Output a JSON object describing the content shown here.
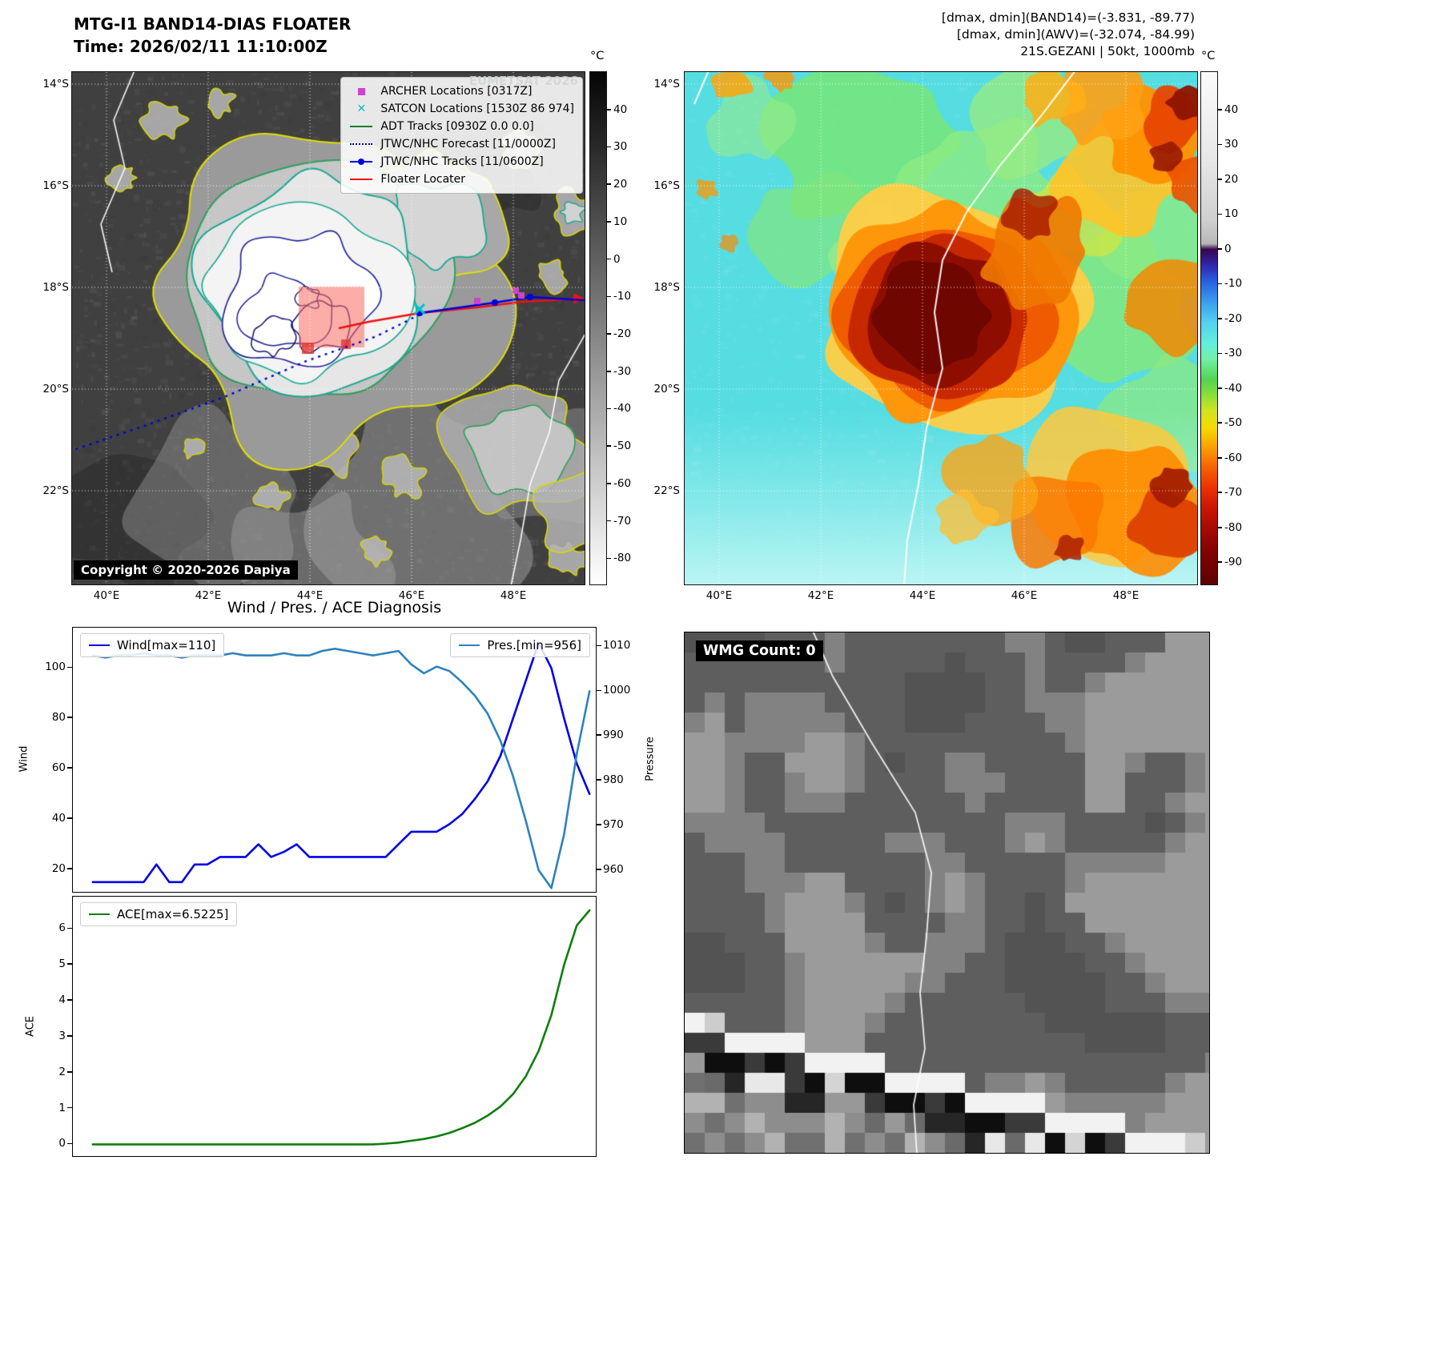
{
  "panel_band14": {
    "title_line1": "MTG-I1 BAND14-DIAS FLOATER",
    "title_line2": "Time: 2026/02/11 11:10:00Z",
    "watermark": "EUMETSAT 2026",
    "copyright": "Copyright © 2020-2026 Dapiya",
    "colorbar": {
      "unit": "°C",
      "ticks": [
        40,
        30,
        20,
        10,
        0,
        -10,
        -20,
        -30,
        -40,
        -50,
        -60,
        -70,
        -80
      ]
    },
    "lat_ticks": [
      "14°S",
      "16°S",
      "18°S",
      "20°S",
      "22°S"
    ],
    "lon_ticks": [
      "40°E",
      "42°E",
      "44°E",
      "46°E",
      "48°E"
    ],
    "legend": [
      {
        "label": "ARCHER Locations [0317Z]",
        "marker": "square",
        "color": "#cc44cc"
      },
      {
        "label": "SATCON Locations [1530Z 86 974]",
        "marker": "x",
        "color": "#00bcd0"
      },
      {
        "label": "ADT Tracks [0930Z 0.0 0.0]",
        "marker": "line",
        "color": "#0d7d2c"
      },
      {
        "label": "JTWC/NHC Forecast [11/0000Z]",
        "marker": "dotted-line",
        "color": "#0000dd"
      },
      {
        "label": "JTWC/NHC Tracks [11/0600Z]",
        "marker": "line-marker",
        "color": "#0000dd"
      },
      {
        "label": "Floater Locater",
        "marker": "line",
        "color": "#ee1111"
      }
    ]
  },
  "panel_awv": {
    "header_lines": [
      "[dmax, dmin](BAND14)=(-3.831, -89.77)",
      "[dmax, dmin](AWV)=(-32.074, -84.99)",
      "21S.GEZANI | 50kt, 1000mb"
    ],
    "colorbar": {
      "unit": "°C",
      "ticks": [
        40,
        30,
        20,
        10,
        0,
        -10,
        -20,
        -30,
        -40,
        -50,
        -60,
        -70,
        -80,
        -90
      ]
    },
    "lat_ticks": [
      "14°S",
      "16°S",
      "18°S",
      "20°S",
      "22°S"
    ],
    "lon_ticks": [
      "40°E",
      "42°E",
      "44°E",
      "46°E",
      "48°E"
    ]
  },
  "wmg": {
    "label": "WMG Count: 0"
  },
  "chart_data": [
    {
      "type": "line",
      "title": "Wind / Pres. / ACE Diagnosis",
      "ylabel": "Wind",
      "y2label": "Pressure",
      "yticks": [
        20,
        40,
        60,
        80,
        100
      ],
      "ylim": [
        10.5,
        116
      ],
      "y2ticks": [
        960,
        970,
        980,
        990,
        1000,
        1010
      ],
      "y2lim": [
        954.8,
        1014.2
      ],
      "series": [
        {
          "name": "Wind[max=110]",
          "axis": "left",
          "color": "#0000e8",
          "values": [
            15,
            15,
            15,
            15,
            15,
            22,
            15,
            15,
            22,
            22,
            25,
            25,
            25,
            30,
            25,
            27,
            30,
            25,
            25,
            25,
            25,
            25,
            25,
            25,
            30,
            35,
            35,
            35,
            38,
            42,
            48,
            55,
            65,
            80,
            95,
            110,
            100,
            80,
            62,
            50
          ]
        },
        {
          "name": "Pres.[min=956]",
          "axis": "right",
          "color": "#2e82bc",
          "values": [
            1008,
            1007.5,
            1008,
            1008,
            1008.5,
            1008,
            1008,
            1007.5,
            1008,
            1008,
            1008,
            1008.5,
            1008,
            1008,
            1008,
            1008.5,
            1008,
            1008,
            1009,
            1009.5,
            1009,
            1008.5,
            1008,
            1008.5,
            1009,
            1006,
            1004,
            1005.5,
            1004.5,
            1002,
            999,
            995,
            989,
            981,
            971,
            960,
            956,
            968,
            986,
            1000
          ]
        }
      ]
    },
    {
      "type": "line",
      "ylabel": "ACE",
      "yticks": [
        0,
        1,
        2,
        3,
        4,
        5,
        6
      ],
      "ylim": [
        -0.37,
        6.9
      ],
      "series": [
        {
          "name": "ACE[max=6.5225]",
          "axis": "left",
          "color": "#0f7d0f",
          "values": [
            0,
            0,
            0,
            0,
            0,
            0,
            0,
            0,
            0,
            0,
            0,
            0,
            0,
            0,
            0,
            0,
            0,
            0,
            0,
            0,
            0,
            0,
            0,
            0.02,
            0.05,
            0.1,
            0.15,
            0.22,
            0.32,
            0.45,
            0.6,
            0.8,
            1.05,
            1.4,
            1.9,
            2.6,
            3.6,
            5.0,
            6.1,
            6.52
          ]
        }
      ]
    }
  ]
}
